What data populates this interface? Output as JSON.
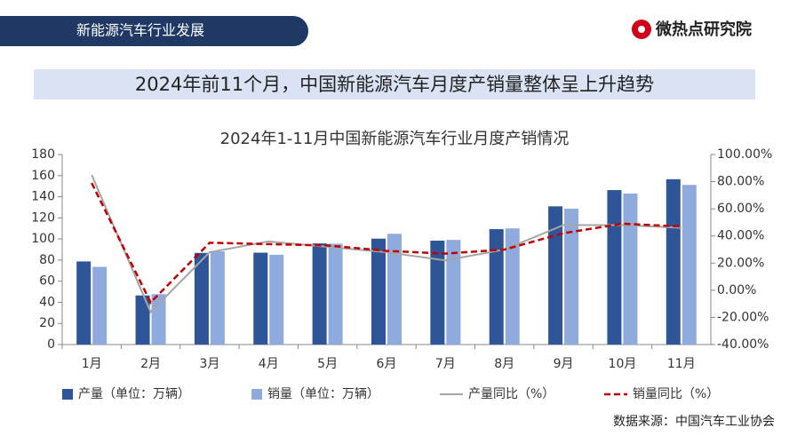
{
  "header": {
    "section": "新能源汽车行业发展",
    "brand": "微热点研究院",
    "headline": "2024年前11个月，中国新能源汽车月度产销量整体呈上升趋势"
  },
  "source": "数据来源：中国汽车工业协会",
  "chart_data": {
    "type": "bar",
    "title": "2024年1-11月中国新能源汽车行业月度产销情况",
    "categories": [
      "1月",
      "2月",
      "3月",
      "4月",
      "5月",
      "6月",
      "7月",
      "8月",
      "9月",
      "10月",
      "11月"
    ],
    "series": [
      {
        "name": "产量（单位：万辆）",
        "type": "bar",
        "color": "#2e5597",
        "values": [
          78.7,
          46.5,
          86.8,
          87,
          95.8,
          100.3,
          98.4,
          109.3,
          130.9,
          146.3,
          156.6
        ]
      },
      {
        "name": "销量（单位：万辆）",
        "type": "bar",
        "color": "#8faadc",
        "values": [
          73.6,
          47.7,
          88.3,
          85,
          95.5,
          104.9,
          99.1,
          110,
          128.7,
          143,
          151.2
        ]
      },
      {
        "name": "产量同比（%）",
        "type": "line",
        "axis": "y2",
        "color": "#a5a5a5",
        "values": [
          85,
          -16,
          28,
          36,
          32,
          28,
          22,
          30,
          48,
          48,
          46
        ]
      },
      {
        "name": "销量同比（%）",
        "type": "line",
        "axis": "y2",
        "color": "#c00000",
        "dashed": true,
        "values": [
          79,
          -9,
          35,
          34,
          33,
          29,
          27,
          30,
          42,
          49,
          47
        ]
      }
    ],
    "ylim": [
      0,
      180
    ],
    "yticks": [
      0,
      20,
      40,
      60,
      80,
      100,
      120,
      140,
      160,
      180
    ],
    "y2lim": [
      -40,
      100
    ],
    "y2ticks": [
      {
        "value": -40,
        "label": "-40.00%"
      },
      {
        "value": -20,
        "label": "-20.00%"
      },
      {
        "value": 0,
        "label": "0.00%"
      },
      {
        "value": 20,
        "label": "20.00%"
      },
      {
        "value": 40,
        "label": "40.00%"
      },
      {
        "value": 60,
        "label": "60.00%"
      },
      {
        "value": 80,
        "label": "80.00%"
      },
      {
        "value": 100,
        "label": "100.00%"
      }
    ],
    "legend": "bottom"
  }
}
